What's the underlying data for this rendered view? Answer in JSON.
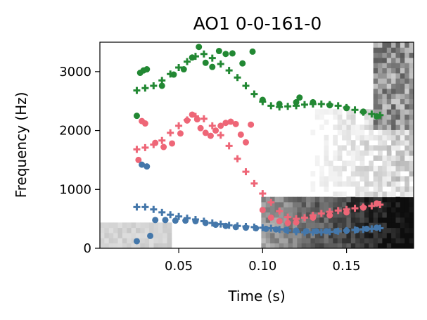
{
  "chart_data": {
    "type": "scatter",
    "title": "AO1 0-0-161-0",
    "xlabel": "Time (s)",
    "ylabel": "Frequency (Hz)",
    "xlim": [
      0.003,
      0.19
    ],
    "ylim": [
      0,
      3500
    ],
    "x_ticks": [
      0.05,
      0.1,
      0.15
    ],
    "x_tick_labels": [
      "0.05",
      "0.10",
      "0.15"
    ],
    "y_ticks": [
      0,
      1000,
      2000,
      3000
    ],
    "y_tick_labels": [
      "0",
      "1000",
      "2000",
      "3000"
    ],
    "grid": false,
    "legend": "none",
    "background": "grayscale spectrogram",
    "colors": {
      "green": "#228833",
      "pink": "#EE6677",
      "blue": "#4477AA"
    },
    "series": [
      {
        "marker": "plus",
        "color": "#228833",
        "x": [
          0.025,
          0.03,
          0.035,
          0.04,
          0.045,
          0.05,
          0.055,
          0.06,
          0.065,
          0.07,
          0.075,
          0.08,
          0.085,
          0.09,
          0.095,
          0.1,
          0.105,
          0.11,
          0.115,
          0.12,
          0.125,
          0.13,
          0.135,
          0.14,
          0.145,
          0.15,
          0.155,
          0.16,
          0.165,
          0.17
        ],
        "y": [
          2680,
          2720,
          2760,
          2850,
          2960,
          3070,
          3170,
          3260,
          3300,
          3230,
          3130,
          3020,
          2900,
          2760,
          2620,
          2490,
          2420,
          2400,
          2410,
          2420,
          2440,
          2450,
          2450,
          2440,
          2420,
          2390,
          2350,
          2310,
          2280,
          2260
        ]
      },
      {
        "marker": "circle",
        "color": "#228833",
        "x": [
          0.025,
          0.027,
          0.029,
          0.031,
          0.04,
          0.047,
          0.053,
          0.058,
          0.062,
          0.066,
          0.07,
          0.074,
          0.078,
          0.082,
          0.088,
          0.094,
          0.1,
          0.11,
          0.12,
          0.122,
          0.13,
          0.14,
          0.15,
          0.16,
          0.168
        ],
        "y": [
          2250,
          2980,
          3020,
          3040,
          2760,
          2950,
          3040,
          3240,
          3420,
          3150,
          3080,
          3350,
          3300,
          3310,
          3140,
          3340,
          2520,
          2450,
          2480,
          2560,
          2480,
          2430,
          2380,
          2320,
          2240
        ]
      },
      {
        "marker": "plus",
        "color": "#EE6677",
        "x": [
          0.025,
          0.03,
          0.035,
          0.04,
          0.045,
          0.05,
          0.055,
          0.06,
          0.065,
          0.07,
          0.075,
          0.08,
          0.085,
          0.09,
          0.095,
          0.1,
          0.105,
          0.11,
          0.115,
          0.12,
          0.125,
          0.13,
          0.135,
          0.14,
          0.145,
          0.15,
          0.155,
          0.16,
          0.165,
          0.17
        ],
        "y": [
          1680,
          1710,
          1760,
          1830,
          1960,
          2080,
          2180,
          2240,
          2200,
          2080,
          1920,
          1740,
          1520,
          1300,
          1100,
          930,
          780,
          630,
          530,
          500,
          520,
          560,
          590,
          620,
          640,
          660,
          680,
          700,
          720,
          740
        ]
      },
      {
        "marker": "circle",
        "color": "#EE6677",
        "x": [
          0.026,
          0.028,
          0.03,
          0.036,
          0.041,
          0.046,
          0.051,
          0.055,
          0.058,
          0.061,
          0.063,
          0.066,
          0.069,
          0.072,
          0.075,
          0.078,
          0.081,
          0.084,
          0.087,
          0.09,
          0.093,
          0.1,
          0.105,
          0.11,
          0.115,
          0.12,
          0.13,
          0.14,
          0.15,
          0.16,
          0.168
        ],
        "y": [
          1500,
          2160,
          2120,
          1790,
          1720,
          1780,
          1950,
          2170,
          2270,
          2190,
          2040,
          1960,
          1910,
          2000,
          2080,
          2130,
          2150,
          2110,
          1930,
          1800,
          2100,
          650,
          520,
          460,
          430,
          440,
          520,
          560,
          610,
          690,
          760
        ]
      },
      {
        "marker": "plus",
        "color": "#4477AA",
        "x": [
          0.025,
          0.03,
          0.035,
          0.04,
          0.045,
          0.05,
          0.055,
          0.06,
          0.065,
          0.07,
          0.075,
          0.08,
          0.085,
          0.09,
          0.095,
          0.1,
          0.105,
          0.11,
          0.115,
          0.12,
          0.125,
          0.13,
          0.135,
          0.14,
          0.145,
          0.15,
          0.155,
          0.16,
          0.165,
          0.17
        ],
        "y": [
          700,
          700,
          660,
          610,
          570,
          540,
          510,
          490,
          460,
          430,
          410,
          390,
          380,
          370,
          360,
          350,
          340,
          320,
          300,
          280,
          270,
          270,
          270,
          280,
          290,
          300,
          310,
          320,
          330,
          340
        ]
      },
      {
        "marker": "circle",
        "color": "#4477AA",
        "x": [
          0.025,
          0.028,
          0.031,
          0.033,
          0.036,
          0.042,
          0.048,
          0.054,
          0.06,
          0.066,
          0.072,
          0.078,
          0.084,
          0.09,
          0.096,
          0.102,
          0.108,
          0.114,
          0.12,
          0.126,
          0.132,
          0.138,
          0.144,
          0.15,
          0.156,
          0.162,
          0.168
        ],
        "y": [
          120,
          1420,
          1390,
          210,
          480,
          480,
          470,
          470,
          460,
          430,
          400,
          380,
          360,
          350,
          340,
          330,
          320,
          310,
          300,
          290,
          290,
          290,
          290,
          300,
          310,
          330,
          350
        ]
      }
    ]
  }
}
